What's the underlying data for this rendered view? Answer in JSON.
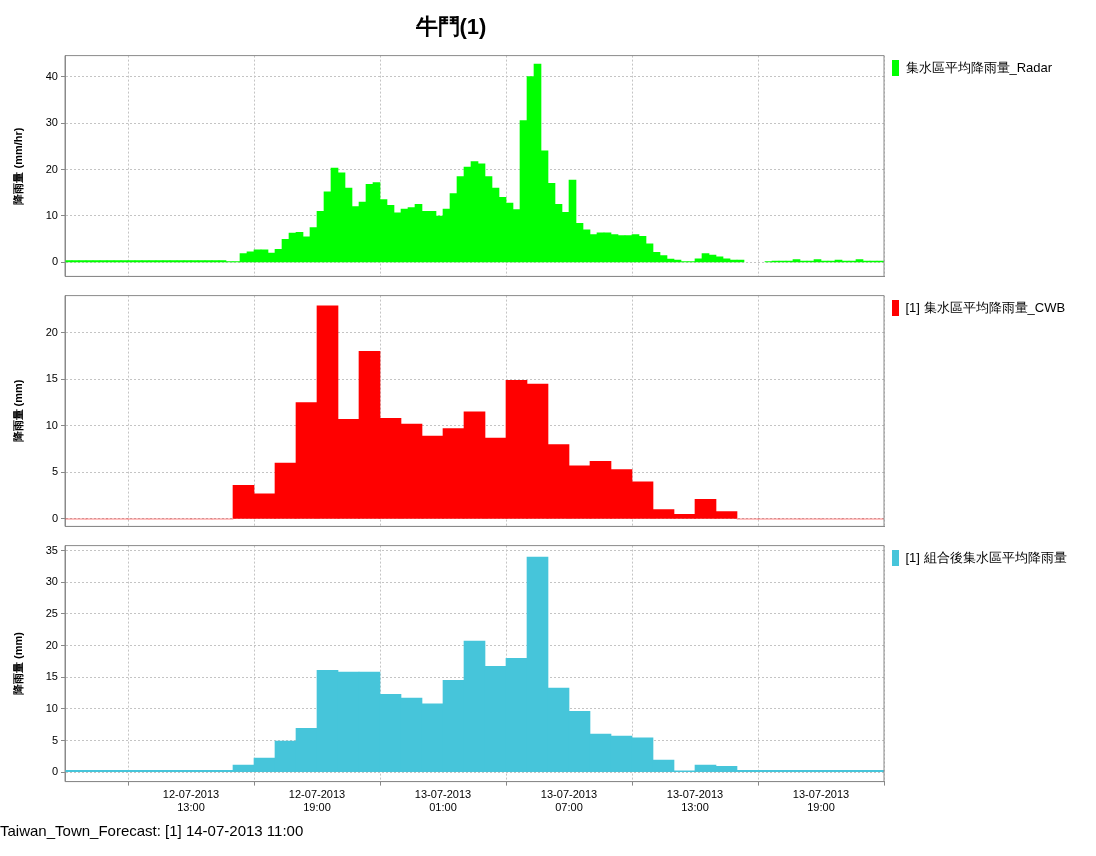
{
  "chart_data": [
    {
      "type": "bar",
      "title": "牛鬥(1)",
      "ylabel": "降雨量 (mm/hr)",
      "legend": "top right",
      "grid": true,
      "tick_labels": "y",
      "x": [
        "2013-07-12T07:10",
        "2013-07-12T07:30",
        "2013-07-12T07:50",
        "2013-07-12T08:10",
        "2013-07-12T08:30",
        "2013-07-12T08:50",
        "2013-07-12T09:10",
        "2013-07-12T09:30",
        "2013-07-12T09:50",
        "2013-07-12T10:10",
        "2013-07-12T10:30",
        "2013-07-12T10:50",
        "2013-07-12T11:10",
        "2013-07-12T11:30",
        "2013-07-12T11:50",
        "2013-07-12T12:10",
        "2013-07-12T12:30",
        "2013-07-12T12:50",
        "2013-07-12T13:10",
        "2013-07-12T13:30",
        "2013-07-12T13:50",
        "2013-07-12T14:10",
        "2013-07-12T14:30",
        "2013-07-12T14:50",
        "2013-07-12T15:10",
        "2013-07-12T15:30",
        "2013-07-12T15:50",
        "2013-07-12T16:10",
        "2013-07-12T16:30",
        "2013-07-12T16:50",
        "2013-07-12T17:10",
        "2013-07-12T17:30",
        "2013-07-12T17:50",
        "2013-07-12T18:10",
        "2013-07-12T18:30",
        "2013-07-12T18:50",
        "2013-07-12T19:10",
        "2013-07-12T19:30",
        "2013-07-12T19:50",
        "2013-07-12T20:10",
        "2013-07-12T20:30",
        "2013-07-12T20:50",
        "2013-07-12T21:10",
        "2013-07-12T21:30",
        "2013-07-12T21:50",
        "2013-07-12T22:10",
        "2013-07-12T22:30",
        "2013-07-12T22:50",
        "2013-07-12T23:10",
        "2013-07-12T23:30",
        "2013-07-12T23:50",
        "2013-07-13T00:10",
        "2013-07-13T00:30",
        "2013-07-13T00:50",
        "2013-07-13T01:10",
        "2013-07-13T01:30",
        "2013-07-13T01:50",
        "2013-07-13T02:10",
        "2013-07-13T02:30",
        "2013-07-13T02:50",
        "2013-07-13T03:10",
        "2013-07-13T03:30",
        "2013-07-13T03:50",
        "2013-07-13T04:10",
        "2013-07-13T04:30",
        "2013-07-13T04:50",
        "2013-07-13T05:10",
        "2013-07-13T05:30",
        "2013-07-13T05:50",
        "2013-07-13T06:10",
        "2013-07-13T06:30",
        "2013-07-13T06:50",
        "2013-07-13T07:10",
        "2013-07-13T07:30",
        "2013-07-13T07:50",
        "2013-07-13T08:10",
        "2013-07-13T08:30",
        "2013-07-13T08:50",
        "2013-07-13T09:10",
        "2013-07-13T09:30",
        "2013-07-13T09:50",
        "2013-07-13T10:10",
        "2013-07-13T10:30",
        "2013-07-13T10:50",
        "2013-07-13T11:10",
        "2013-07-13T11:30",
        "2013-07-13T11:50",
        "2013-07-13T12:10",
        "2013-07-13T12:30",
        "2013-07-13T12:50",
        "2013-07-13T13:10",
        "2013-07-13T13:30",
        "2013-07-13T13:50",
        "2013-07-13T14:10",
        "2013-07-13T14:30",
        "2013-07-13T14:50",
        "2013-07-13T15:10",
        "2013-07-13T15:30",
        "2013-07-13T15:50",
        "2013-07-13T16:10",
        "2013-07-13T16:30",
        "2013-07-13T16:50",
        "2013-07-13T17:10",
        "2013-07-13T17:30",
        "2013-07-13T17:50",
        "2013-07-13T18:10",
        "2013-07-13T18:30",
        "2013-07-13T18:50",
        "2013-07-13T19:10",
        "2013-07-13T19:30",
        "2013-07-13T19:50",
        "2013-07-13T20:10",
        "2013-07-13T20:30",
        "2013-07-13T20:50",
        "2013-07-13T21:10",
        "2013-07-13T21:30",
        "2013-07-13T21:50"
      ],
      "series": [
        {
          "name": "集水區平均降雨量_Radar",
          "color": "#00ff00",
          "values": [
            0.4,
            0.4,
            0.4,
            0.4,
            0.4,
            0.4,
            0.4,
            0.4,
            0.4,
            0.4,
            0.4,
            0.4,
            0.4,
            0.4,
            0.4,
            0.4,
            0.4,
            0.4,
            0.4,
            0.4,
            0.4,
            0.4,
            0.4,
            0.2,
            0.2,
            1.9,
            2.3,
            2.7,
            2.7,
            2.0,
            2.8,
            5.0,
            6.3,
            6.5,
            5.5,
            7.5,
            11.0,
            15.2,
            20.3,
            19.3,
            16.0,
            12.0,
            13.0,
            16.8,
            17.2,
            13.5,
            12.3,
            10.7,
            11.5,
            11.8,
            12.5,
            11.0,
            11.0,
            10.0,
            11.5,
            14.8,
            18.5,
            20.5,
            21.7,
            21.2,
            18.5,
            16.0,
            14.0,
            12.8,
            11.4,
            30.5,
            40.0,
            42.7,
            24.0,
            17.0,
            12.5,
            10.8,
            17.7,
            8.4,
            7.0,
            6.0,
            6.4,
            6.4,
            6.0,
            5.8,
            5.8,
            6.0,
            5.6,
            4.0,
            2.2,
            1.5,
            0.7,
            0.5,
            0.2,
            0.2,
            0.8,
            1.9,
            1.6,
            1.2,
            0.8,
            0.5,
            0.5,
            null,
            null,
            null,
            0.2,
            0.3,
            0.3,
            0.3,
            0.6,
            0.3,
            0.3,
            0.6,
            0.3,
            0.3,
            0.5,
            0.3,
            0.3,
            0.6,
            0.3,
            0.3,
            0.3
          ]
        }
      ],
      "xlim": [
        "2013-07-12T07:00",
        "2013-07-13T22:00"
      ],
      "xticks": [
        {
          "value": "2013-07-12T13:00",
          "label": null
        },
        {
          "value": "2013-07-12T19:00",
          "label": null
        },
        {
          "value": "2013-07-13T01:00",
          "label": null
        },
        {
          "value": "2013-07-13T07:00",
          "label": null
        },
        {
          "value": "2013-07-13T13:00",
          "label": null
        },
        {
          "value": "2013-07-13T19:00",
          "label": null
        }
      ],
      "ylim": [
        -3,
        44.5
      ],
      "yticks": [
        0,
        10,
        20,
        30,
        40
      ]
    },
    {
      "type": "bar",
      "ylabel": "降雨量 (mm)",
      "legend": "top right",
      "grid": true,
      "tick_labels": "y",
      "x": [
        "2013-07-12T07:30",
        "2013-07-12T08:30",
        "2013-07-12T09:30",
        "2013-07-12T10:30",
        "2013-07-12T11:30",
        "2013-07-12T12:30",
        "2013-07-12T13:30",
        "2013-07-12T14:30",
        "2013-07-12T15:30",
        "2013-07-12T16:30",
        "2013-07-12T17:30",
        "2013-07-12T18:30",
        "2013-07-12T19:30",
        "2013-07-12T20:30",
        "2013-07-12T21:30",
        "2013-07-12T22:30",
        "2013-07-12T23:30",
        "2013-07-13T00:30",
        "2013-07-13T01:30",
        "2013-07-13T02:30",
        "2013-07-13T03:30",
        "2013-07-13T04:30",
        "2013-07-13T05:30",
        "2013-07-13T06:30",
        "2013-07-13T07:30",
        "2013-07-13T08:30",
        "2013-07-13T09:30",
        "2013-07-13T10:30",
        "2013-07-13T11:30",
        "2013-07-13T12:30",
        "2013-07-13T13:30",
        "2013-07-13T14:30",
        "2013-07-13T15:30",
        "2013-07-13T16:30",
        "2013-07-13T17:30",
        "2013-07-13T18:30",
        "2013-07-13T19:30",
        "2013-07-13T20:30",
        "2013-07-13T21:30"
      ],
      "series": [
        {
          "name": "[1] 集水區平均降雨量_CWB",
          "color": "#ff0000",
          "values": [
            0,
            0,
            0,
            0,
            0,
            0,
            0,
            0,
            3.6,
            2.7,
            6.0,
            12.5,
            22.9,
            10.7,
            18.0,
            10.8,
            10.2,
            8.9,
            9.7,
            11.5,
            8.7,
            14.9,
            14.5,
            8.0,
            5.7,
            6.2,
            5.3,
            4.0,
            1.0,
            0.5,
            2.1,
            0.8,
            0,
            0,
            0,
            0,
            0,
            0,
            0
          ]
        }
      ],
      "xlim": [
        "2013-07-12T07:00",
        "2013-07-13T22:00"
      ],
      "xticks": [
        {
          "value": "2013-07-12T13:00",
          "label": null
        },
        {
          "value": "2013-07-12T19:00",
          "label": null
        },
        {
          "value": "2013-07-13T01:00",
          "label": null
        },
        {
          "value": "2013-07-13T07:00",
          "label": null
        },
        {
          "value": "2013-07-13T13:00",
          "label": null
        },
        {
          "value": "2013-07-13T19:00",
          "label": null
        }
      ],
      "ylim": [
        -0.8,
        24
      ],
      "yticks": [
        0,
        5,
        10,
        15,
        20
      ]
    },
    {
      "type": "bar",
      "ylabel": "降雨量 (mm)",
      "legend": "top right",
      "grid": true,
      "annotations": [
        "Taiwan_Town_Forecast: [1] 14-07-2013 11:00"
      ],
      "x": [
        "2013-07-12T07:30",
        "2013-07-12T08:30",
        "2013-07-12T09:30",
        "2013-07-12T10:30",
        "2013-07-12T11:30",
        "2013-07-12T12:30",
        "2013-07-12T13:30",
        "2013-07-12T14:30",
        "2013-07-12T15:30",
        "2013-07-12T16:30",
        "2013-07-12T17:30",
        "2013-07-12T18:30",
        "2013-07-12T19:30",
        "2013-07-12T20:30",
        "2013-07-12T21:30",
        "2013-07-12T22:30",
        "2013-07-12T23:30",
        "2013-07-13T00:30",
        "2013-07-13T01:30",
        "2013-07-13T02:30",
        "2013-07-13T03:30",
        "2013-07-13T04:30",
        "2013-07-13T05:30",
        "2013-07-13T06:30",
        "2013-07-13T07:30",
        "2013-07-13T08:30",
        "2013-07-13T09:30",
        "2013-07-13T10:30",
        "2013-07-13T11:30",
        "2013-07-13T12:30",
        "2013-07-13T13:30",
        "2013-07-13T14:30",
        "2013-07-13T15:30",
        "2013-07-13T16:30",
        "2013-07-13T17:30",
        "2013-07-13T18:30",
        "2013-07-13T19:30",
        "2013-07-13T20:30",
        "2013-07-13T21:30"
      ],
      "series": [
        {
          "name": "[1] 組合後集水區平均降雨量",
          "color": "#46c5da",
          "values": [
            0.3,
            0.3,
            0.3,
            0.3,
            0.3,
            0.3,
            0.3,
            0.3,
            1.1,
            2.2,
            4.9,
            6.9,
            16.1,
            15.8,
            15.8,
            12.3,
            11.7,
            10.8,
            14.5,
            20.7,
            16.7,
            18.0,
            34.0,
            13.3,
            9.6,
            6.0,
            5.7,
            5.4,
            1.9,
            0.2,
            1.1,
            0.9,
            0.3,
            0.3,
            0.3,
            0.3,
            0.3,
            0.3,
            0.3
          ]
        }
      ],
      "xlim": [
        "2013-07-12T07:00",
        "2013-07-13T22:00"
      ],
      "xticks": [
        {
          "value": "2013-07-12T13:00",
          "label": "12-07-2013 13:00"
        },
        {
          "value": "2013-07-12T19:00",
          "label": "12-07-2013 19:00"
        },
        {
          "value": "2013-07-13T01:00",
          "label": "13-07-2013 01:00"
        },
        {
          "value": "2013-07-13T07:00",
          "label": "13-07-2013 07:00"
        },
        {
          "value": "2013-07-13T13:00",
          "label": "13-07-2013 13:00"
        },
        {
          "value": "2013-07-13T19:00",
          "label": "13-07-2013 19:00"
        }
      ],
      "ylim": [
        -1.5,
        35.8
      ],
      "yticks": [
        0,
        5,
        10,
        15,
        20,
        25,
        30,
        35
      ]
    }
  ]
}
